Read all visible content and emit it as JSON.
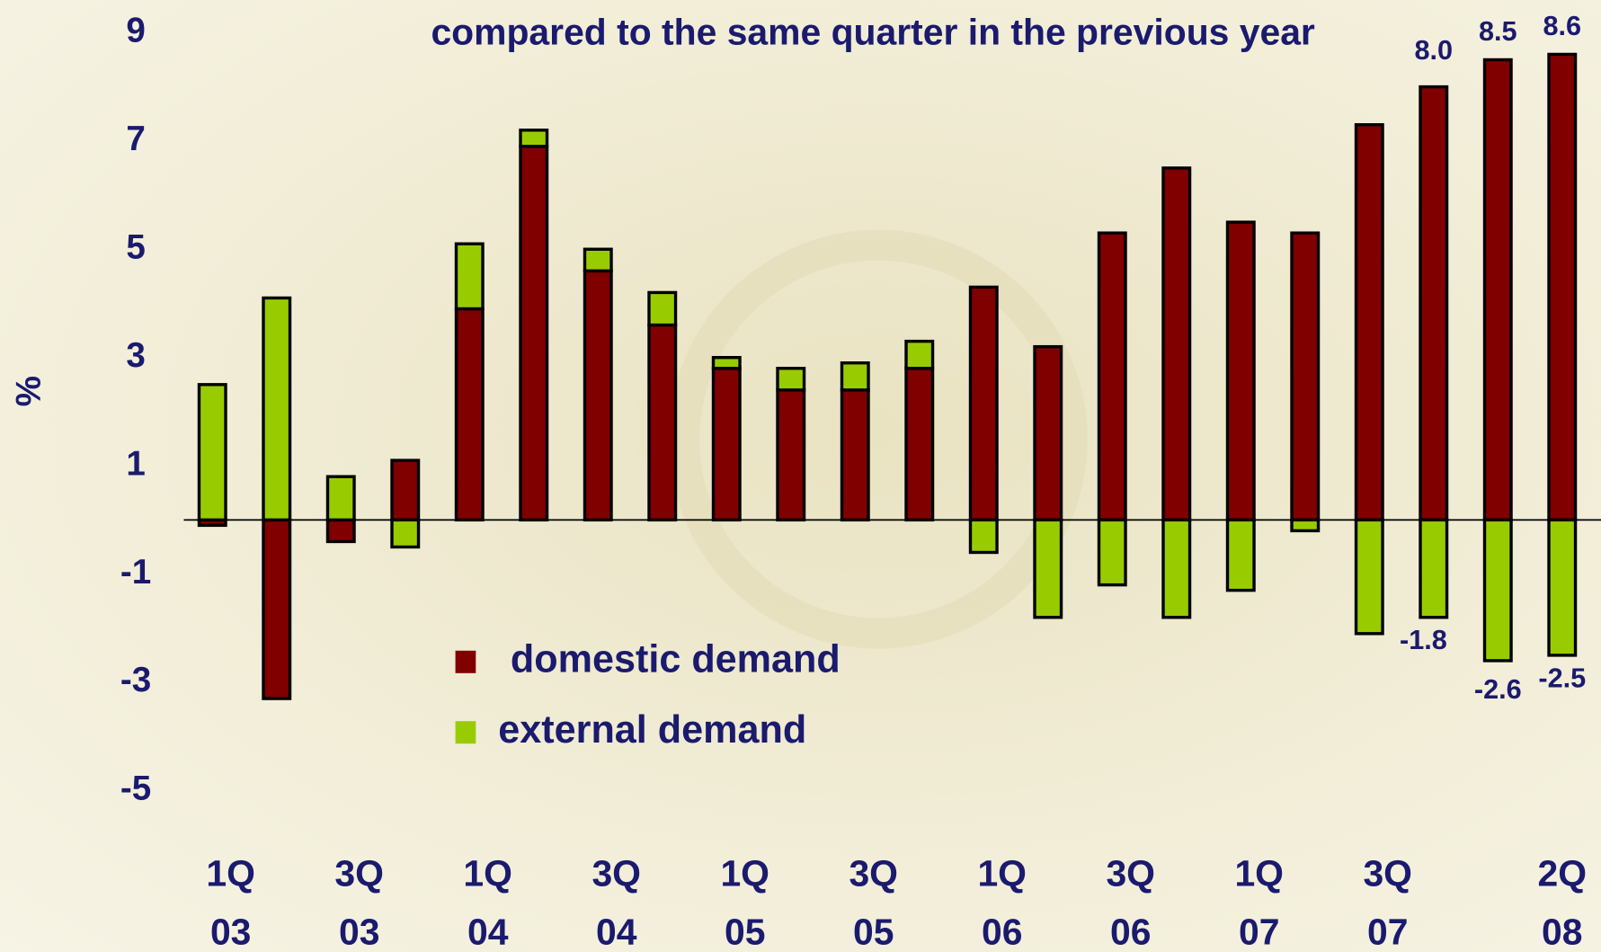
{
  "chart_data": {
    "type": "stacked-bar",
    "title": "compared to the same quarter in the previous year",
    "y_label": "%",
    "categories": [
      [
        "1Q",
        "03"
      ],
      null,
      [
        "3Q",
        "03"
      ],
      null,
      [
        "1Q",
        "04"
      ],
      null,
      [
        "3Q",
        "04"
      ],
      null,
      [
        "1Q",
        "05"
      ],
      null,
      [
        "3Q",
        "05"
      ],
      null,
      [
        "1Q",
        "06"
      ],
      null,
      [
        "3Q",
        "06"
      ],
      null,
      [
        "1Q",
        "07"
      ],
      null,
      [
        "3Q",
        "07"
      ],
      null,
      null,
      [
        "2Q",
        "08"
      ]
    ],
    "series": [
      {
        "name": "domestic demand",
        "color": "#800000",
        "values": [
          -0.1,
          -3.3,
          -0.4,
          1.1,
          3.9,
          6.9,
          4.6,
          3.6,
          2.8,
          2.4,
          2.4,
          2.8,
          4.3,
          3.2,
          5.3,
          6.5,
          5.5,
          5.3,
          7.3,
          8.0,
          8.5,
          8.6
        ],
        "value_labels": [
          null,
          null,
          null,
          null,
          null,
          null,
          null,
          null,
          null,
          null,
          null,
          null,
          null,
          null,
          null,
          null,
          null,
          null,
          null,
          "8.0",
          "8.5",
          "8.6"
        ]
      },
      {
        "name": "external demand",
        "color": "#99cc00",
        "values": [
          2.5,
          4.1,
          0.8,
          -0.5,
          1.2,
          0.3,
          0.4,
          0.6,
          0.2,
          0.4,
          0.5,
          0.5,
          -0.6,
          -1.8,
          -1.2,
          -1.8,
          -1.3,
          -0.2,
          -2.1,
          -1.8,
          -2.6,
          -2.5
        ],
        "value_labels": [
          null,
          null,
          null,
          null,
          null,
          null,
          null,
          null,
          null,
          null,
          null,
          null,
          null,
          null,
          null,
          null,
          null,
          null,
          null,
          "-1.8",
          "-2.6",
          "-2.5"
        ]
      }
    ],
    "ylim": [
      -7,
      9.5
    ],
    "yticks": [
      -5,
      -3,
      -1,
      1,
      3,
      5,
      7,
      9
    ]
  }
}
